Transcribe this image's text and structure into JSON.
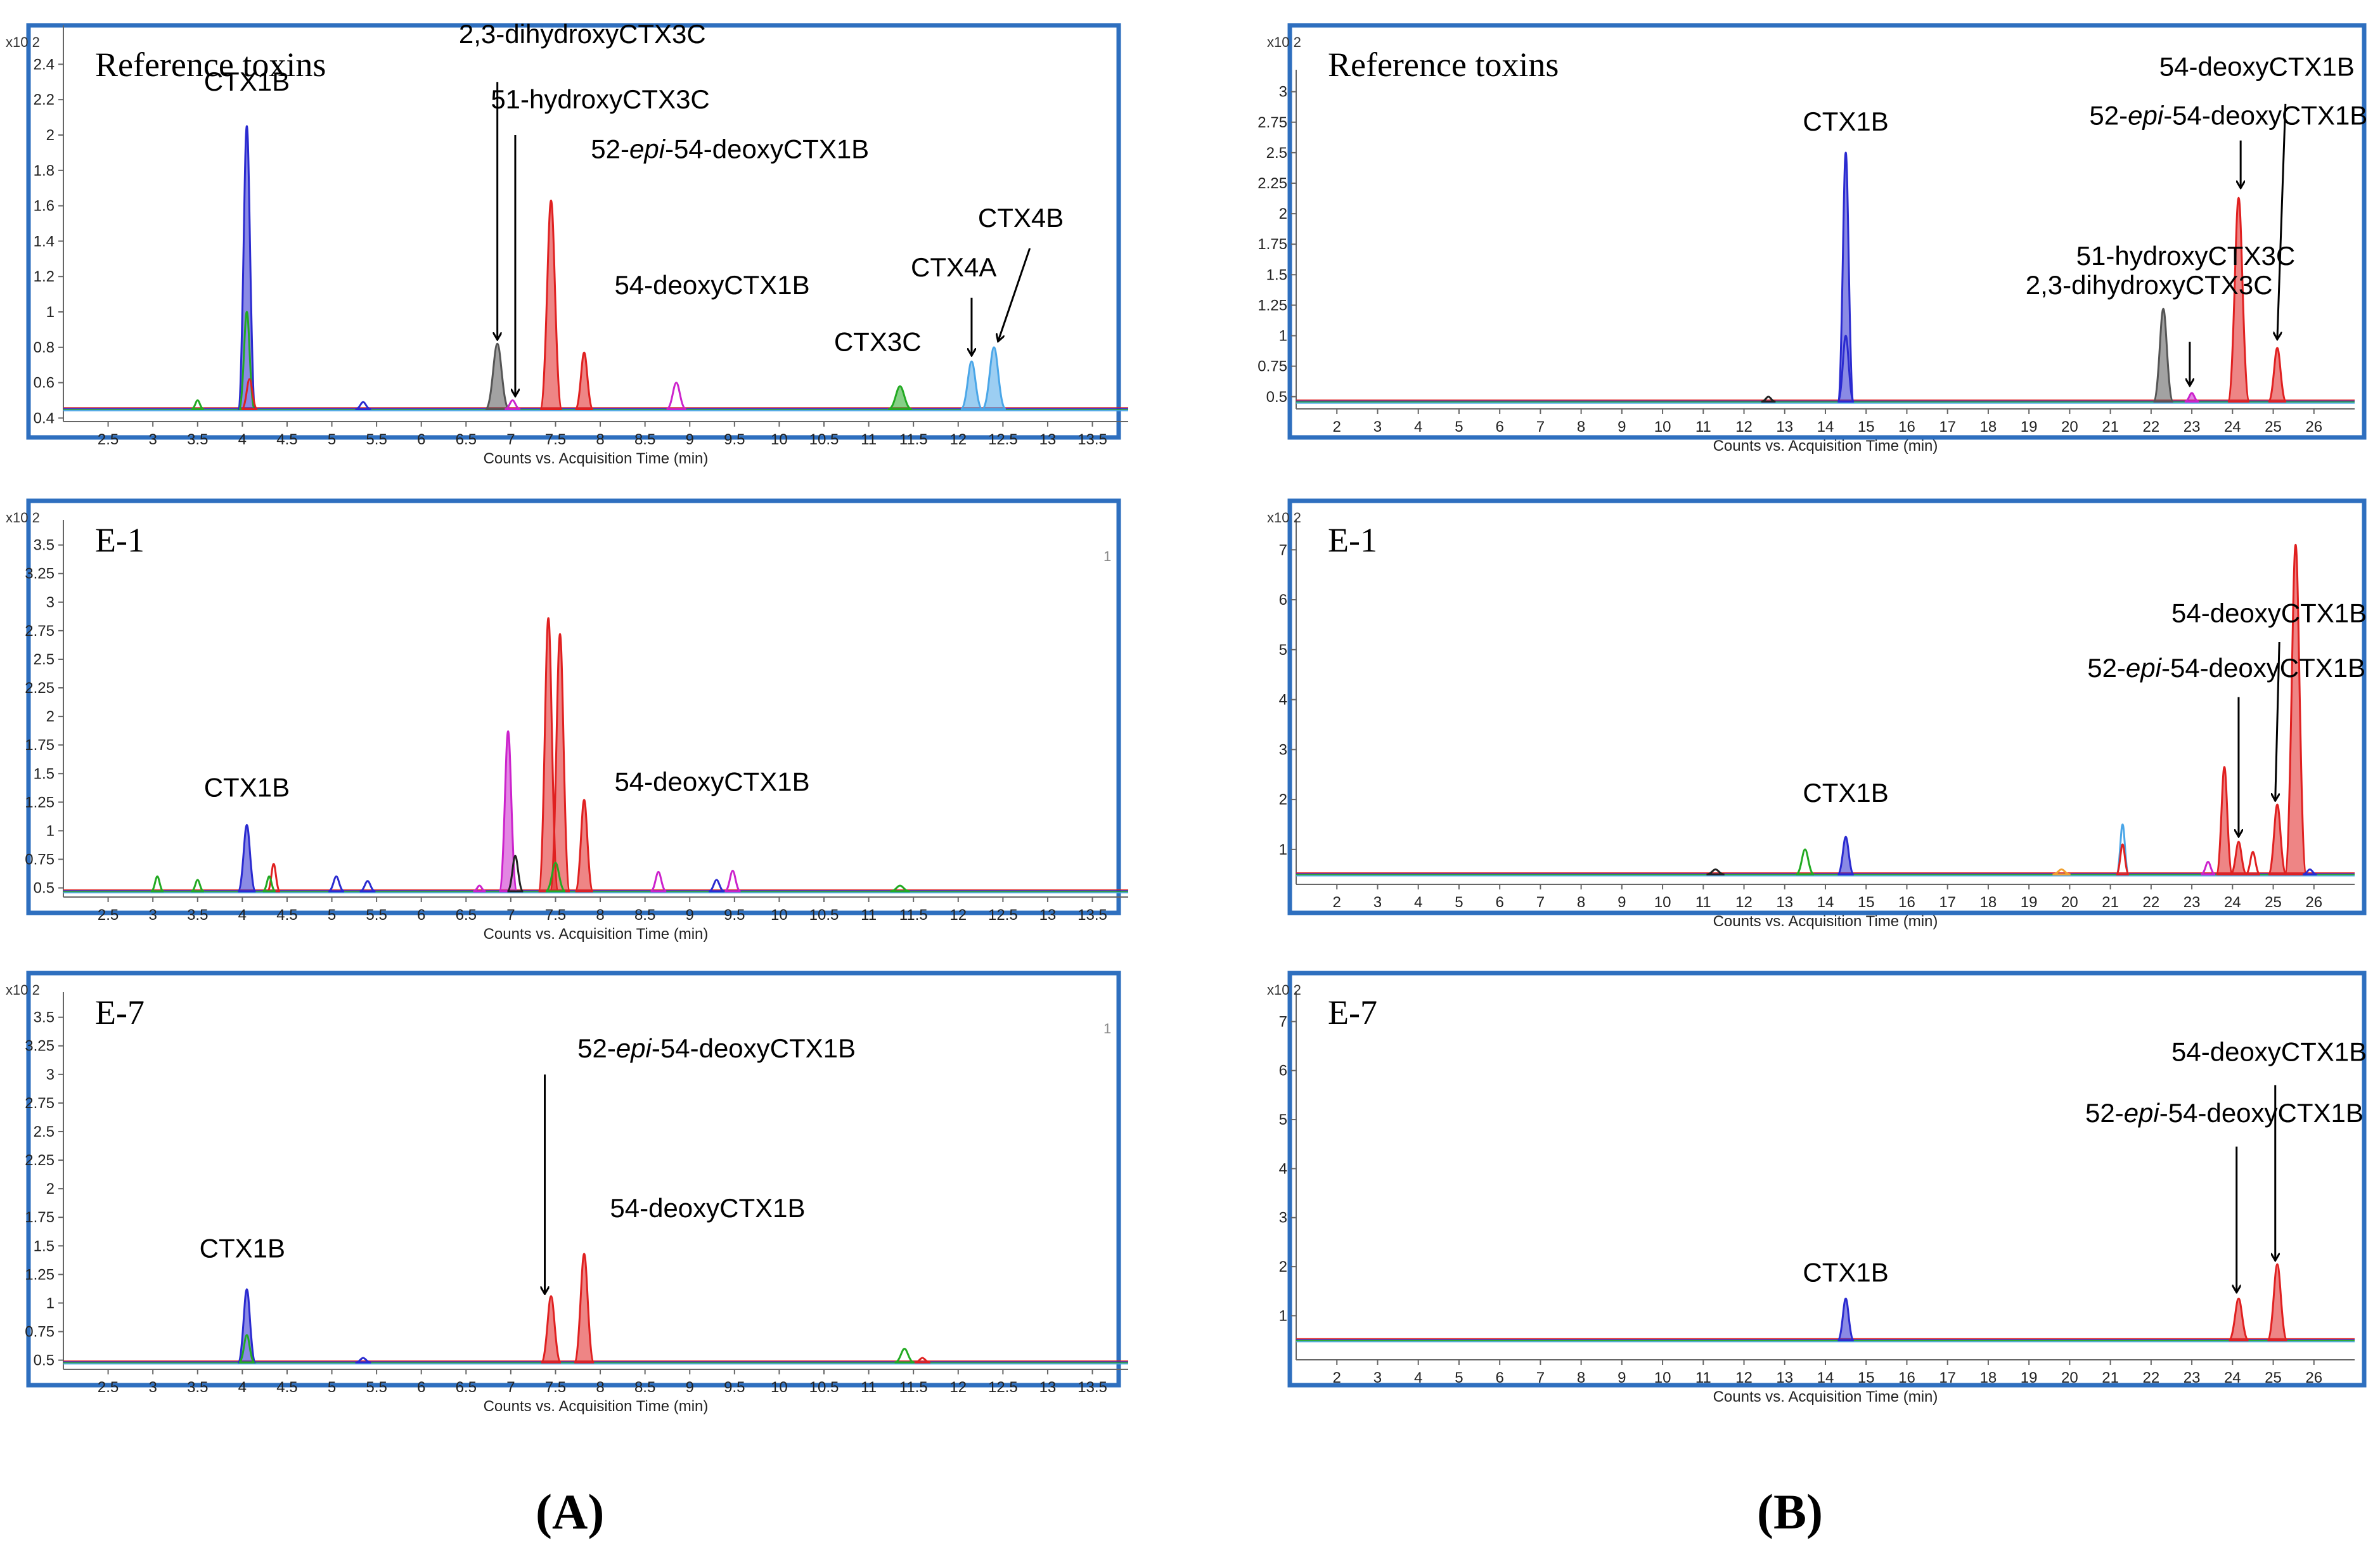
{
  "figure": {
    "column_labels": [
      {
        "open": "(",
        "letter": "A",
        "close": ")"
      },
      {
        "open": "(",
        "letter": "B",
        "close": ")"
      }
    ],
    "colors": {
      "frame": "#2e6fbf",
      "grey": "#555555",
      "red": "#e02020",
      "blue": "#2a2ad0",
      "magenta": "#cc22cc",
      "green": "#22aa22",
      "lightblue": "#4aa6e8",
      "orange": "#f0a030",
      "dark": "#222222"
    }
  },
  "chart_data": [
    {
      "id": "A-ref",
      "type": "line",
      "title": "Reference toxins",
      "xlabel": "Counts vs. Acquisition Time (min)",
      "ylabel_multiplier": "x10 2",
      "xlim": [
        2.0,
        13.9
      ],
      "ylim": [
        0.38,
        2.62
      ],
      "xticks": [
        "2.5",
        "3",
        "3.5",
        "4",
        "4.5",
        "5",
        "5.5",
        "6",
        "6.5",
        "7",
        "7.5",
        "8",
        "8.5",
        "9",
        "9.5",
        "10",
        "10.5",
        "11",
        "11.5",
        "12",
        "12.5",
        "13",
        "13.5"
      ],
      "yticks": [
        "0.4",
        "0.6",
        "0.8",
        "1",
        "1.2",
        "1.4",
        "1.6",
        "1.8",
        "2",
        "2.2",
        "2.4"
      ],
      "baseline": 0.45,
      "peaks": [
        {
          "x": 4.05,
          "y": 2.05,
          "w": 0.045,
          "color": "blue",
          "filled": true
        },
        {
          "x": 4.05,
          "y": 1.0,
          "w": 0.04,
          "color": "green",
          "filled": false
        },
        {
          "x": 4.08,
          "y": 0.62,
          "w": 0.04,
          "color": "red",
          "filled": false
        },
        {
          "x": 3.5,
          "y": 0.5,
          "w": 0.03,
          "color": "green",
          "filled": false
        },
        {
          "x": 5.35,
          "y": 0.49,
          "w": 0.04,
          "color": "blue",
          "filled": false
        },
        {
          "x": 6.85,
          "y": 0.82,
          "w": 0.06,
          "color": "grey",
          "filled": true
        },
        {
          "x": 7.02,
          "y": 0.5,
          "w": 0.04,
          "color": "magenta",
          "filled": false
        },
        {
          "x": 7.45,
          "y": 1.63,
          "w": 0.055,
          "color": "red",
          "filled": true
        },
        {
          "x": 7.82,
          "y": 0.77,
          "w": 0.045,
          "color": "red",
          "filled": true
        },
        {
          "x": 8.85,
          "y": 0.6,
          "w": 0.05,
          "color": "magenta",
          "filled": false
        },
        {
          "x": 11.35,
          "y": 0.58,
          "w": 0.06,
          "color": "green",
          "filled": true
        },
        {
          "x": 12.15,
          "y": 0.72,
          "w": 0.055,
          "color": "lightblue",
          "filled": true
        },
        {
          "x": 12.4,
          "y": 0.8,
          "w": 0.06,
          "color": "lightblue",
          "filled": true
        }
      ],
      "annotations": [
        {
          "text": "CTX1B",
          "tx": 4.05,
          "ty": 2.25,
          "ax": null,
          "ay": null
        },
        {
          "text": "2,3-dihydroxyCTX3C",
          "tx": 7.8,
          "ty": 2.52,
          "ax": 6.85,
          "ay": 0.85,
          "from_x": 6.85,
          "from_y": 2.3
        },
        {
          "text": "51-hydroxyCTX3C",
          "tx": 8.0,
          "ty": 2.15,
          "ax": 7.05,
          "ay": 0.53,
          "from_x": 7.05,
          "from_y": 2.0
        },
        {
          "text": "52-epi-54-deoxyCTX1B",
          "tx": 9.45,
          "ty": 1.87,
          "ax": null,
          "ay": null
        },
        {
          "text": "54-deoxyCTX1B",
          "tx": 9.25,
          "ty": 1.1,
          "ax": null,
          "ay": null
        },
        {
          "text": "CTX3C",
          "tx": 11.1,
          "ty": 0.78,
          "ax": null,
          "ay": null
        },
        {
          "text": "CTX4A",
          "tx": 11.95,
          "ty": 1.2,
          "ax": 12.15,
          "ay": 0.76,
          "from_x": 12.15,
          "from_y": 1.08
        },
        {
          "text": "CTX4B",
          "tx": 12.7,
          "ty": 1.48,
          "ax": 12.45,
          "ay": 0.84,
          "from_x": 12.8,
          "from_y": 1.36
        }
      ]
    },
    {
      "id": "A-E1",
      "type": "line",
      "title": "E-1",
      "xlabel": "Counts vs. Acquisition Time (min)",
      "ylabel_multiplier": "x10 2",
      "corner_mark": "1",
      "xlim": [
        2.0,
        13.9
      ],
      "ylim": [
        0.42,
        3.72
      ],
      "xticks": [
        "2.5",
        "3",
        "3.5",
        "4",
        "4.5",
        "5",
        "5.5",
        "6",
        "6.5",
        "7",
        "7.5",
        "8",
        "8.5",
        "9",
        "9.5",
        "10",
        "10.5",
        "11",
        "11.5",
        "12",
        "12.5",
        "13",
        "13.5"
      ],
      "yticks": [
        "0.5",
        "0.75",
        "1",
        "1.25",
        "1.5",
        "1.75",
        "2",
        "2.25",
        "2.5",
        "2.75",
        "3",
        "3.25",
        "3.5"
      ],
      "baseline": 0.47,
      "peaks": [
        {
          "x": 3.05,
          "y": 0.6,
          "w": 0.03,
          "color": "green",
          "filled": false
        },
        {
          "x": 3.5,
          "y": 0.57,
          "w": 0.03,
          "color": "green",
          "filled": false
        },
        {
          "x": 4.05,
          "y": 1.05,
          "w": 0.045,
          "color": "blue",
          "filled": true
        },
        {
          "x": 4.35,
          "y": 0.71,
          "w": 0.03,
          "color": "red",
          "filled": false
        },
        {
          "x": 4.3,
          "y": 0.6,
          "w": 0.03,
          "color": "green",
          "filled": false
        },
        {
          "x": 5.05,
          "y": 0.6,
          "w": 0.04,
          "color": "blue",
          "filled": false
        },
        {
          "x": 5.4,
          "y": 0.56,
          "w": 0.04,
          "color": "blue",
          "filled": false
        },
        {
          "x": 6.65,
          "y": 0.52,
          "w": 0.03,
          "color": "magenta",
          "filled": false
        },
        {
          "x": 6.97,
          "y": 1.87,
          "w": 0.045,
          "color": "magenta",
          "filled": true
        },
        {
          "x": 7.05,
          "y": 0.78,
          "w": 0.04,
          "color": "dark",
          "filled": false
        },
        {
          "x": 7.42,
          "y": 2.86,
          "w": 0.05,
          "color": "red",
          "filled": true
        },
        {
          "x": 7.55,
          "y": 2.72,
          "w": 0.05,
          "color": "red",
          "filled": true
        },
        {
          "x": 7.5,
          "y": 0.72,
          "w": 0.05,
          "color": "green",
          "filled": false
        },
        {
          "x": 7.82,
          "y": 1.27,
          "w": 0.045,
          "color": "red",
          "filled": true
        },
        {
          "x": 8.65,
          "y": 0.64,
          "w": 0.04,
          "color": "magenta",
          "filled": false
        },
        {
          "x": 9.3,
          "y": 0.57,
          "w": 0.04,
          "color": "blue",
          "filled": false
        },
        {
          "x": 9.48,
          "y": 0.65,
          "w": 0.04,
          "color": "magenta",
          "filled": false
        },
        {
          "x": 11.35,
          "y": 0.52,
          "w": 0.05,
          "color": "green",
          "filled": false
        }
      ],
      "annotations": [
        {
          "text": "CTX1B",
          "tx": 4.05,
          "ty": 1.3,
          "ax": null,
          "ay": null
        },
        {
          "text": "54-deoxyCTX1B",
          "tx": 9.25,
          "ty": 1.35,
          "ax": null,
          "ay": null
        }
      ]
    },
    {
      "id": "A-E7",
      "type": "line",
      "title": "E-7",
      "xlabel": "Counts vs. Acquisition Time (min)",
      "ylabel_multiplier": "x10 2",
      "corner_mark": "1",
      "xlim": [
        2.0,
        13.9
      ],
      "ylim": [
        0.42,
        3.72
      ],
      "xticks": [
        "2.5",
        "3",
        "3.5",
        "4",
        "4.5",
        "5",
        "5.5",
        "6",
        "6.5",
        "7",
        "7.5",
        "8",
        "8.5",
        "9",
        "9.5",
        "10",
        "10.5",
        "11",
        "11.5",
        "12",
        "12.5",
        "13",
        "13.5"
      ],
      "yticks": [
        "0.5",
        "0.75",
        "1",
        "1.25",
        "1.5",
        "1.75",
        "2",
        "2.25",
        "2.5",
        "2.75",
        "3",
        "3.25",
        "3.5"
      ],
      "baseline": 0.48,
      "peaks": [
        {
          "x": 4.05,
          "y": 1.12,
          "w": 0.045,
          "color": "blue",
          "filled": true
        },
        {
          "x": 4.05,
          "y": 0.72,
          "w": 0.04,
          "color": "green",
          "filled": false
        },
        {
          "x": 5.35,
          "y": 0.52,
          "w": 0.04,
          "color": "blue",
          "filled": false
        },
        {
          "x": 7.45,
          "y": 1.06,
          "w": 0.05,
          "color": "red",
          "filled": true
        },
        {
          "x": 7.82,
          "y": 1.43,
          "w": 0.05,
          "color": "red",
          "filled": true
        },
        {
          "x": 11.4,
          "y": 0.6,
          "w": 0.05,
          "color": "green",
          "filled": false
        },
        {
          "x": 11.6,
          "y": 0.52,
          "w": 0.04,
          "color": "red",
          "filled": false
        }
      ],
      "annotations": [
        {
          "text": "CTX1B",
          "tx": 4.0,
          "ty": 1.4,
          "ax": null,
          "ay": null
        },
        {
          "text": "52-epi-54-deoxyCTX1B",
          "tx": 9.3,
          "ty": 3.15,
          "ax": 7.38,
          "ay": 1.09,
          "from_x": 7.38,
          "from_y": 3.0
        },
        {
          "text": "54-deoxyCTX1B",
          "tx": 9.2,
          "ty": 1.75,
          "ax": null,
          "ay": null
        }
      ]
    },
    {
      "id": "B-ref",
      "type": "line",
      "title": "Reference toxins",
      "xlabel": "Counts vs. Acquisition Time (min)",
      "ylabel_multiplier": "x10 2",
      "xlim": [
        1.0,
        27.0
      ],
      "ylim": [
        0.4,
        3.18
      ],
      "xticks": [
        "2",
        "3",
        "4",
        "5",
        "6",
        "7",
        "8",
        "9",
        "10",
        "11",
        "12",
        "13",
        "14",
        "15",
        "16",
        "17",
        "18",
        "19",
        "20",
        "21",
        "22",
        "23",
        "24",
        "25",
        "26"
      ],
      "yticks": [
        "0.5",
        "0.75",
        "1",
        "1.25",
        "1.5",
        "1.75",
        "2",
        "2.25",
        "2.5",
        "2.75",
        "3"
      ],
      "baseline": 0.46,
      "peaks": [
        {
          "x": 14.5,
          "y": 2.5,
          "w": 0.09,
          "color": "blue",
          "filled": true
        },
        {
          "x": 14.5,
          "y": 1.0,
          "w": 0.09,
          "color": "blue",
          "filled": false
        },
        {
          "x": 12.6,
          "y": 0.5,
          "w": 0.08,
          "color": "dark",
          "filled": false
        },
        {
          "x": 22.3,
          "y": 1.22,
          "w": 0.11,
          "color": "grey",
          "filled": true
        },
        {
          "x": 23.0,
          "y": 0.53,
          "w": 0.08,
          "color": "magenta",
          "filled": true
        },
        {
          "x": 24.15,
          "y": 2.13,
          "w": 0.12,
          "color": "red",
          "filled": true
        },
        {
          "x": 25.1,
          "y": 0.9,
          "w": 0.1,
          "color": "red",
          "filled": true
        }
      ],
      "annotations": [
        {
          "text": "CTX1B",
          "tx": 14.5,
          "ty": 2.68,
          "ax": null,
          "ay": null
        },
        {
          "text": "54-deoxyCTX1B",
          "tx": 24.6,
          "ty": 3.13,
          "ax": null,
          "ay": null
        },
        {
          "text": "52-epi-54-deoxyCTX1B",
          "tx": 23.9,
          "ty": 2.73,
          "ax": 24.2,
          "ay": 2.22,
          "from_x": 24.2,
          "from_y": 2.6
        },
        {
          "text": "51-hydroxyCTX3C",
          "tx": 22.85,
          "ty": 1.58,
          "ax": 22.95,
          "ay": 0.6,
          "from_x": 22.95,
          "from_y": 0.95
        },
        {
          "text": "2,3-dihydroxyCTX3C",
          "tx": 21.95,
          "ty": 1.34,
          "ax": null,
          "ay": null
        },
        {
          "text": "",
          "tx": null,
          "ty": null,
          "ax": 25.1,
          "ay": 0.98,
          "from_x": 25.3,
          "from_y": 2.9
        }
      ]
    },
    {
      "id": "B-E1",
      "type": "line",
      "title": "E-1",
      "xlabel": "Counts vs. Acquisition Time (min)",
      "ylabel_multiplier": "x10 2",
      "xlim": [
        1.0,
        27.0
      ],
      "ylim": [
        0.3,
        7.6
      ],
      "xticks": [
        "2",
        "3",
        "4",
        "5",
        "6",
        "7",
        "8",
        "9",
        "10",
        "11",
        "12",
        "13",
        "14",
        "15",
        "16",
        "17",
        "18",
        "19",
        "20",
        "21",
        "22",
        "23",
        "24",
        "25",
        "26"
      ],
      "yticks": [
        "1",
        "2",
        "3",
        "4",
        "5",
        "6",
        "7"
      ],
      "baseline": 0.5,
      "peaks": [
        {
          "x": 11.3,
          "y": 0.6,
          "w": 0.1,
          "color": "dark",
          "filled": false
        },
        {
          "x": 13.5,
          "y": 1.0,
          "w": 0.1,
          "color": "green",
          "filled": false
        },
        {
          "x": 14.5,
          "y": 1.25,
          "w": 0.09,
          "color": "blue",
          "filled": true
        },
        {
          "x": 21.3,
          "y": 1.5,
          "w": 0.07,
          "color": "lightblue",
          "filled": false
        },
        {
          "x": 21.3,
          "y": 1.1,
          "w": 0.07,
          "color": "red",
          "filled": false
        },
        {
          "x": 19.8,
          "y": 0.6,
          "w": 0.1,
          "color": "orange",
          "filled": false
        },
        {
          "x": 23.4,
          "y": 0.75,
          "w": 0.08,
          "color": "magenta",
          "filled": false
        },
        {
          "x": 23.8,
          "y": 2.65,
          "w": 0.09,
          "color": "red",
          "filled": true
        },
        {
          "x": 24.15,
          "y": 1.15,
          "w": 0.09,
          "color": "red",
          "filled": true
        },
        {
          "x": 24.5,
          "y": 0.95,
          "w": 0.08,
          "color": "red",
          "filled": false
        },
        {
          "x": 25.1,
          "y": 1.9,
          "w": 0.1,
          "color": "red",
          "filled": true
        },
        {
          "x": 25.55,
          "y": 7.1,
          "w": 0.12,
          "color": "red",
          "filled": true
        },
        {
          "x": 25.9,
          "y": 0.6,
          "w": 0.08,
          "color": "blue",
          "filled": false
        }
      ],
      "annotations": [
        {
          "text": "CTX1B",
          "tx": 14.5,
          "ty": 1.95,
          "ax": null,
          "ay": null
        },
        {
          "text": "54-deoxyCTX1B",
          "tx": 24.9,
          "ty": 5.55,
          "ax": 25.05,
          "ay": 2.0,
          "from_x": 25.15,
          "from_y": 5.15
        },
        {
          "text": "52-epi-54-deoxyCTX1B",
          "tx": 23.85,
          "ty": 4.45,
          "ax": 24.15,
          "ay": 1.28,
          "from_x": 24.15,
          "from_y": 4.05
        }
      ]
    },
    {
      "id": "B-E7",
      "type": "line",
      "title": "E-7",
      "xlabel": "Counts vs. Acquisition Time (min)",
      "ylabel_multiplier": "x10 2",
      "xlim": [
        1.0,
        27.0
      ],
      "ylim": [
        0.1,
        7.6
      ],
      "xticks": [
        "2",
        "3",
        "4",
        "5",
        "6",
        "7",
        "8",
        "9",
        "10",
        "11",
        "12",
        "13",
        "14",
        "15",
        "16",
        "17",
        "18",
        "19",
        "20",
        "21",
        "22",
        "23",
        "24",
        "25",
        "26"
      ],
      "yticks": [
        "1",
        "2",
        "3",
        "4",
        "5",
        "6",
        "7"
      ],
      "baseline": 0.5,
      "peaks": [
        {
          "x": 14.5,
          "y": 1.35,
          "w": 0.09,
          "color": "blue",
          "filled": true
        },
        {
          "x": 24.15,
          "y": 1.35,
          "w": 0.11,
          "color": "red",
          "filled": true
        },
        {
          "x": 25.1,
          "y": 2.05,
          "w": 0.11,
          "color": "red",
          "filled": true
        }
      ],
      "annotations": [
        {
          "text": "CTX1B",
          "tx": 14.5,
          "ty": 1.7,
          "ax": null,
          "ay": null
        },
        {
          "text": "54-deoxyCTX1B",
          "tx": 24.9,
          "ty": 6.2,
          "ax": 25.05,
          "ay": 2.15,
          "from_x": 25.05,
          "from_y": 5.7
        },
        {
          "text": "52-epi-54-deoxyCTX1B",
          "tx": 23.8,
          "ty": 4.95,
          "ax": 24.1,
          "ay": 1.5,
          "from_x": 24.1,
          "from_y": 4.45
        }
      ]
    }
  ]
}
